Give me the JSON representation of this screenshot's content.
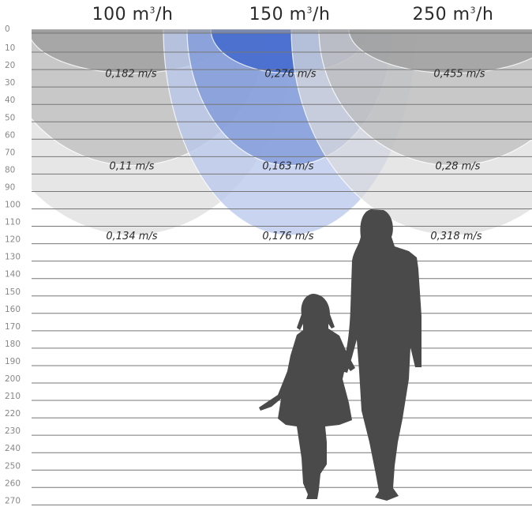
{
  "columns": [
    {
      "id": "c100",
      "flow_value": "100",
      "flow_unit_base": "m",
      "flow_unit_exp": "3",
      "flow_unit_tail": "/h",
      "mode": "gray",
      "velocities": [
        "0,182 m/s",
        "0,11 m/s",
        "0,134 m/s"
      ]
    },
    {
      "id": "c150",
      "flow_value": "150",
      "flow_unit_base": "m",
      "flow_unit_exp": "3",
      "flow_unit_tail": "/h",
      "mode": "blue",
      "velocities": [
        "0,276 m/s",
        "0,163 m/s",
        "0,176 m/s"
      ]
    },
    {
      "id": "c250",
      "flow_value": "250",
      "flow_unit_base": "m",
      "flow_unit_exp": "3",
      "flow_unit_tail": "/h",
      "mode": "gray",
      "velocities": [
        "0,455 m/s",
        "0,28 m/s",
        "0,318 m/s"
      ]
    }
  ],
  "depth_axis": {
    "min": 0,
    "max": 270,
    "step": 10
  },
  "zone_depths": [
    23,
    76,
    116
  ],
  "colors": {
    "gray_dark": "#9a9a9a",
    "gray_mid": "#bdbdbd",
    "gray_light": "#dcdcdc",
    "blue_dark": "#3b63cc",
    "blue_mid": "#7f9ad8",
    "blue_light": "#b9c8ec",
    "line": "#777777",
    "tick": "#888888",
    "text": "#2a2a2a",
    "silhouette": "#4a4a4a"
  },
  "figures": {
    "woman_icon": "woman-silhouette-icon",
    "girl_icon": "girl-silhouette-icon"
  }
}
